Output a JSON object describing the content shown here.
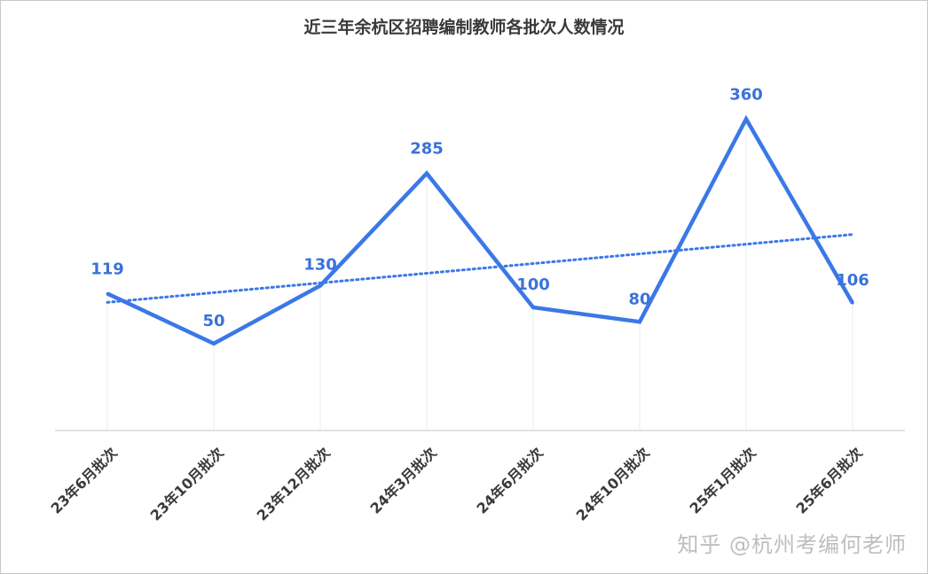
{
  "chart_data": {
    "type": "line",
    "title": "近三年余杭区招聘编制教师各批次人数情况",
    "categories": [
      "23年6月批次",
      "23年10月批次",
      "23年12月批次",
      "24年3月批次",
      "24年6月批次",
      "24年10月批次",
      "25年1月批次",
      "25年6月批次"
    ],
    "series": [
      {
        "values": [
          119,
          50,
          130,
          285,
          100,
          80,
          360,
          106
        ]
      }
    ],
    "trendline": {
      "style": "dotted",
      "type": "linear"
    },
    "ylim": [
      -70,
      380
    ],
    "grid": false,
    "line_color": "#3b78e7",
    "label_color": "#3b72d8",
    "axis_color": "#d9d9d9"
  },
  "watermark": "知乎 @杭州考编何老师"
}
